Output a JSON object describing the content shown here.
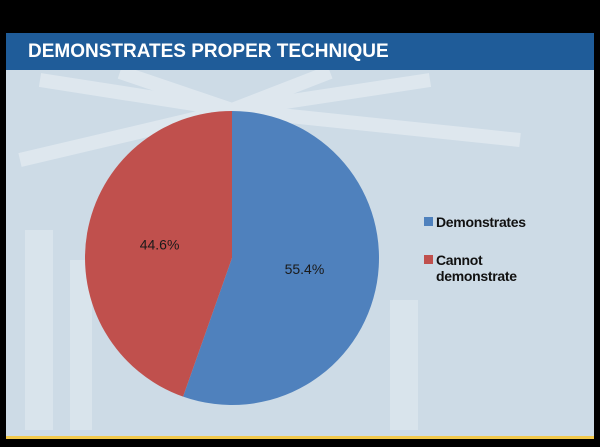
{
  "chart_data": {
    "type": "pie",
    "title": "DEMONSTRATES PROPER TECHNIQUE",
    "categories": [
      "Demonstrates",
      "Cannot demonstrate"
    ],
    "values": [
      55.4,
      44.6
    ],
    "value_labels": [
      "55.4%",
      "44.6%"
    ],
    "colors": [
      "#4f81bd",
      "#c0504d"
    ]
  }
}
